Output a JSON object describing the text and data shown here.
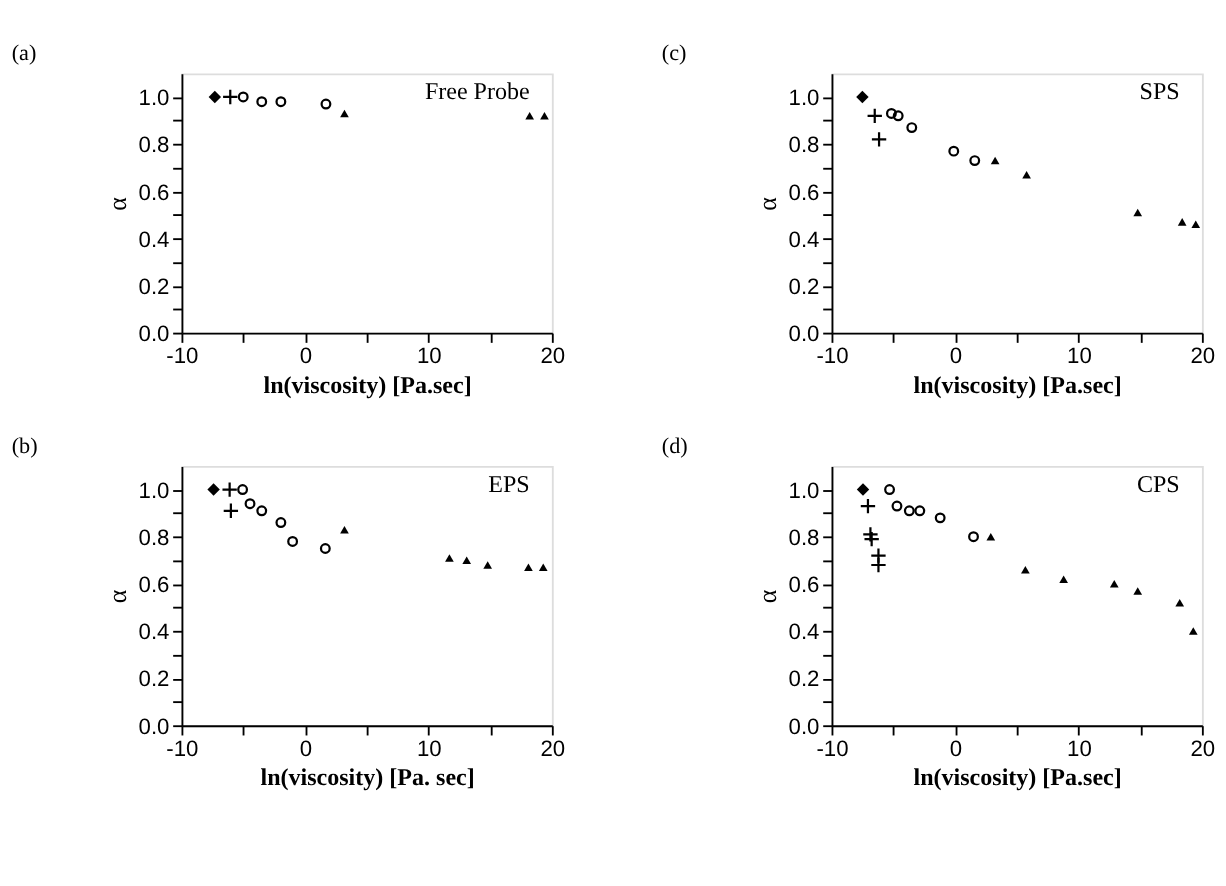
{
  "chart_data": [
    {
      "type": "scatter",
      "title": "(a)",
      "xlabel": "ln(viscosity) [Pa.sec]",
      "ylabel": "α",
      "annotations": [
        "Free Probe"
      ],
      "xlim": [
        -10,
        20
      ],
      "xticks": [
        -10,
        {
          "value": -5,
          "label": null
        },
        0,
        {
          "value": 5,
          "label": null
        },
        10,
        {
          "value": 15,
          "label": null
        },
        20
      ],
      "ylim": [
        0,
        1.1
      ],
      "yticks": [
        {
          "value": 0,
          "label": "0.0"
        },
        {
          "value": 0.1,
          "label": null
        },
        0.2,
        {
          "value": 0.3,
          "label": null
        },
        0.4,
        {
          "value": 0.5,
          "label": null
        },
        0.6,
        {
          "value": 0.7,
          "label": null
        },
        0.8,
        {
          "value": 0.9,
          "label": null
        },
        {
          "value": 1,
          "label": "1.0"
        }
      ],
      "grid": false,
      "series": [
        {
          "color": "#000000",
          "marker": "diamond",
          "x": [
            -7.3
          ],
          "values": [
            1.0
          ]
        },
        {
          "color": "#000000",
          "marker": "cross",
          "x": [
            -6.05
          ],
          "values": [
            1.0
          ]
        },
        {
          "color": "#000000",
          "marker": "circle",
          "x": [
            -5.0,
            -3.5,
            -1.95,
            1.7
          ],
          "values": [
            1.0,
            0.98,
            0.98,
            0.97
          ]
        },
        {
          "color": "#000000",
          "marker": "triangle",
          "x": [
            3.2,
            18.2,
            19.4
          ],
          "values": [
            0.93,
            0.92,
            0.92
          ]
        }
      ]
    },
    {
      "type": "scatter",
      "title": "(c)",
      "xlabel": "ln(viscosity) [Pa.sec]",
      "ylabel": "α",
      "annotations": [
        "SPS"
      ],
      "xlim": [
        -10,
        20
      ],
      "xticks": [
        -10,
        {
          "value": -5,
          "label": null
        },
        0,
        {
          "value": 5,
          "label": null
        },
        10,
        {
          "value": 15,
          "label": null
        },
        20
      ],
      "ylim": [
        0,
        1.1
      ],
      "yticks": [
        {
          "value": 0,
          "label": "0.0"
        },
        {
          "value": 0.1,
          "label": null
        },
        0.2,
        {
          "value": 0.3,
          "label": null
        },
        0.4,
        {
          "value": 0.5,
          "label": null
        },
        0.6,
        {
          "value": 0.7,
          "label": null
        },
        0.8,
        {
          "value": 0.9,
          "label": null
        },
        {
          "value": 1,
          "label": "1.0"
        }
      ],
      "grid": false,
      "series": [
        {
          "color": "#000000",
          "marker": "diamond",
          "x": [
            -7.5
          ],
          "values": [
            1.0
          ]
        },
        {
          "color": "#000000",
          "marker": "cross",
          "x": [
            -6.5,
            -6.15
          ],
          "values": [
            0.92,
            0.82
          ]
        },
        {
          "color": "#000000",
          "marker": "circle",
          "x": [
            -5.15,
            -4.6,
            -3.5,
            -0.1,
            1.6
          ],
          "values": [
            0.93,
            0.92,
            0.87,
            0.77,
            0.73
          ]
        },
        {
          "color": "#000000",
          "marker": "triangle",
          "x": [
            3.25,
            5.8,
            14.8,
            18.4,
            19.5
          ],
          "values": [
            0.73,
            0.67,
            0.51,
            0.47,
            0.46
          ]
        }
      ]
    },
    {
      "type": "scatter",
      "title": "(b)",
      "xlabel": "ln(viscosity) [Pa. sec]",
      "ylabel": "α",
      "annotations": [
        "EPS"
      ],
      "xlim": [
        -10,
        20
      ],
      "xticks": [
        -10,
        {
          "value": -5,
          "label": null
        },
        0,
        {
          "value": 5,
          "label": null
        },
        10,
        {
          "value": 15,
          "label": null
        },
        20
      ],
      "ylim": [
        0,
        1.1
      ],
      "yticks": [
        {
          "value": 0,
          "label": "0.0"
        },
        {
          "value": 0.1,
          "label": null
        },
        0.2,
        {
          "value": 0.3,
          "label": null
        },
        0.4,
        {
          "value": 0.5,
          "label": null
        },
        0.6,
        {
          "value": 0.7,
          "label": null
        },
        0.8,
        {
          "value": 0.9,
          "label": null
        },
        {
          "value": 1,
          "label": "1.0"
        }
      ],
      "grid": false,
      "series": [
        {
          "color": "#000000",
          "marker": "diamond",
          "x": [
            -7.4
          ],
          "values": [
            1.0
          ]
        },
        {
          "color": "#000000",
          "marker": "cross",
          "x": [
            -6.1,
            -6.0
          ],
          "values": [
            1.0,
            0.91
          ]
        },
        {
          "color": "#000000",
          "marker": "circle",
          "x": [
            -5.05,
            -4.45,
            -3.5,
            -1.95,
            -1.0,
            1.65
          ],
          "values": [
            1.0,
            0.94,
            0.91,
            0.86,
            0.78,
            0.75
          ]
        },
        {
          "color": "#000000",
          "marker": "triangle",
          "x": [
            3.2,
            11.7,
            13.1,
            14.8,
            18.1,
            19.3
          ],
          "values": [
            0.83,
            0.71,
            0.7,
            0.68,
            0.67,
            0.67
          ]
        }
      ]
    },
    {
      "type": "scatter",
      "title": "(d)",
      "xlabel": "ln(viscosity) [Pa.sec]",
      "ylabel": "α",
      "annotations": [
        "CPS"
      ],
      "xlim": [
        -10,
        20
      ],
      "xticks": [
        -10,
        {
          "value": -5,
          "label": null
        },
        0,
        {
          "value": 5,
          "label": null
        },
        10,
        {
          "value": 15,
          "label": null
        },
        20
      ],
      "ylim": [
        0,
        1.1
      ],
      "yticks": [
        {
          "value": 0,
          "label": "0.0"
        },
        {
          "value": 0.1,
          "label": null
        },
        0.2,
        {
          "value": 0.3,
          "label": null
        },
        0.4,
        {
          "value": 0.5,
          "label": null
        },
        0.6,
        {
          "value": 0.7,
          "label": null
        },
        0.8,
        {
          "value": 0.9,
          "label": null
        },
        {
          "value": 1,
          "label": "1.0"
        }
      ],
      "grid": false,
      "series": [
        {
          "color": "#000000",
          "marker": "diamond",
          "x": [
            -7.45
          ],
          "values": [
            1.0
          ]
        },
        {
          "color": "#000000",
          "marker": "cross",
          "x": [
            -7.05,
            -6.85,
            -6.75,
            -6.2,
            -6.2
          ],
          "values": [
            0.93,
            0.81,
            0.79,
            0.72,
            0.68
          ]
        },
        {
          "color": "#000000",
          "marker": "circle",
          "x": [
            -5.3,
            -4.7,
            -3.7,
            -2.85,
            -1.2,
            1.5
          ],
          "values": [
            1.0,
            0.93,
            0.91,
            0.91,
            0.88,
            0.8
          ]
        },
        {
          "color": "#000000",
          "marker": "triangle",
          "x": [
            2.9,
            5.7,
            8.8,
            12.9,
            14.8,
            18.2,
            19.3
          ],
          "values": [
            0.8,
            0.66,
            0.62,
            0.6,
            0.57,
            0.52,
            0.4
          ]
        }
      ]
    }
  ]
}
